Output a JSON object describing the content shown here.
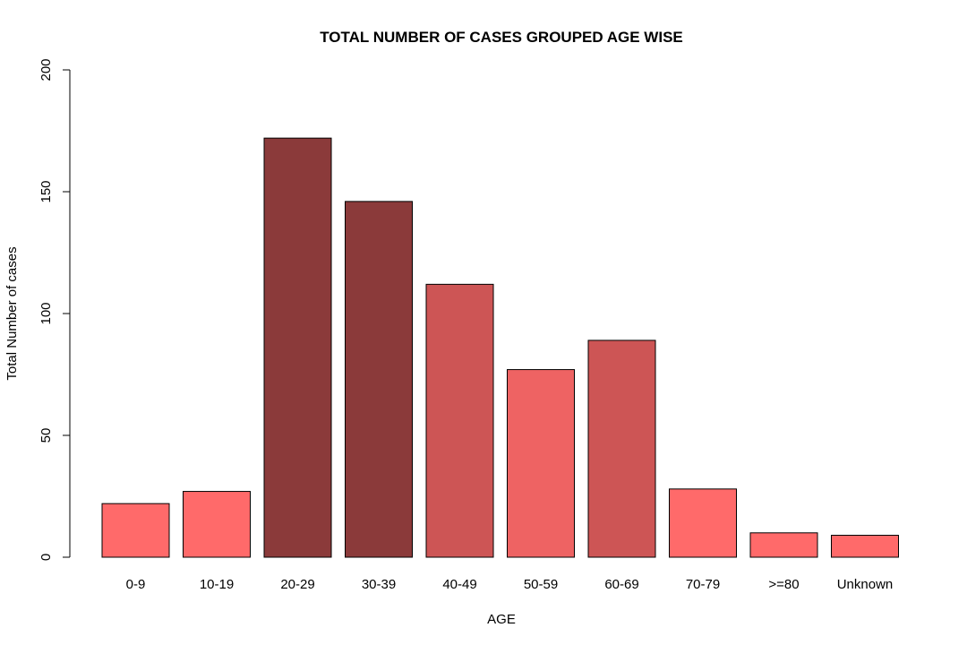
{
  "chart_data": {
    "type": "bar",
    "title": "TOTAL NUMBER OF CASES GROUPED AGE WISE",
    "xlabel": "AGE",
    "ylabel": "Total Number of cases",
    "categories": [
      "0-9",
      "10-19",
      "20-29",
      "30-39",
      "40-49",
      "50-59",
      "60-69",
      "70-79",
      ">=80",
      "Unknown"
    ],
    "values": [
      22,
      27,
      172,
      146,
      112,
      77,
      89,
      28,
      10,
      9
    ],
    "colors": [
      "#ff6a6a",
      "#ff6a6a",
      "#8b3a3a",
      "#8b3a3a",
      "#cd5555",
      "#ee6363",
      "#cd5555",
      "#ff6a6a",
      "#ff6a6a",
      "#ff6a6a"
    ],
    "ylim": [
      0,
      200
    ],
    "yticks": [
      0,
      50,
      100,
      150,
      200
    ],
    "grid": false,
    "legend": "none"
  }
}
